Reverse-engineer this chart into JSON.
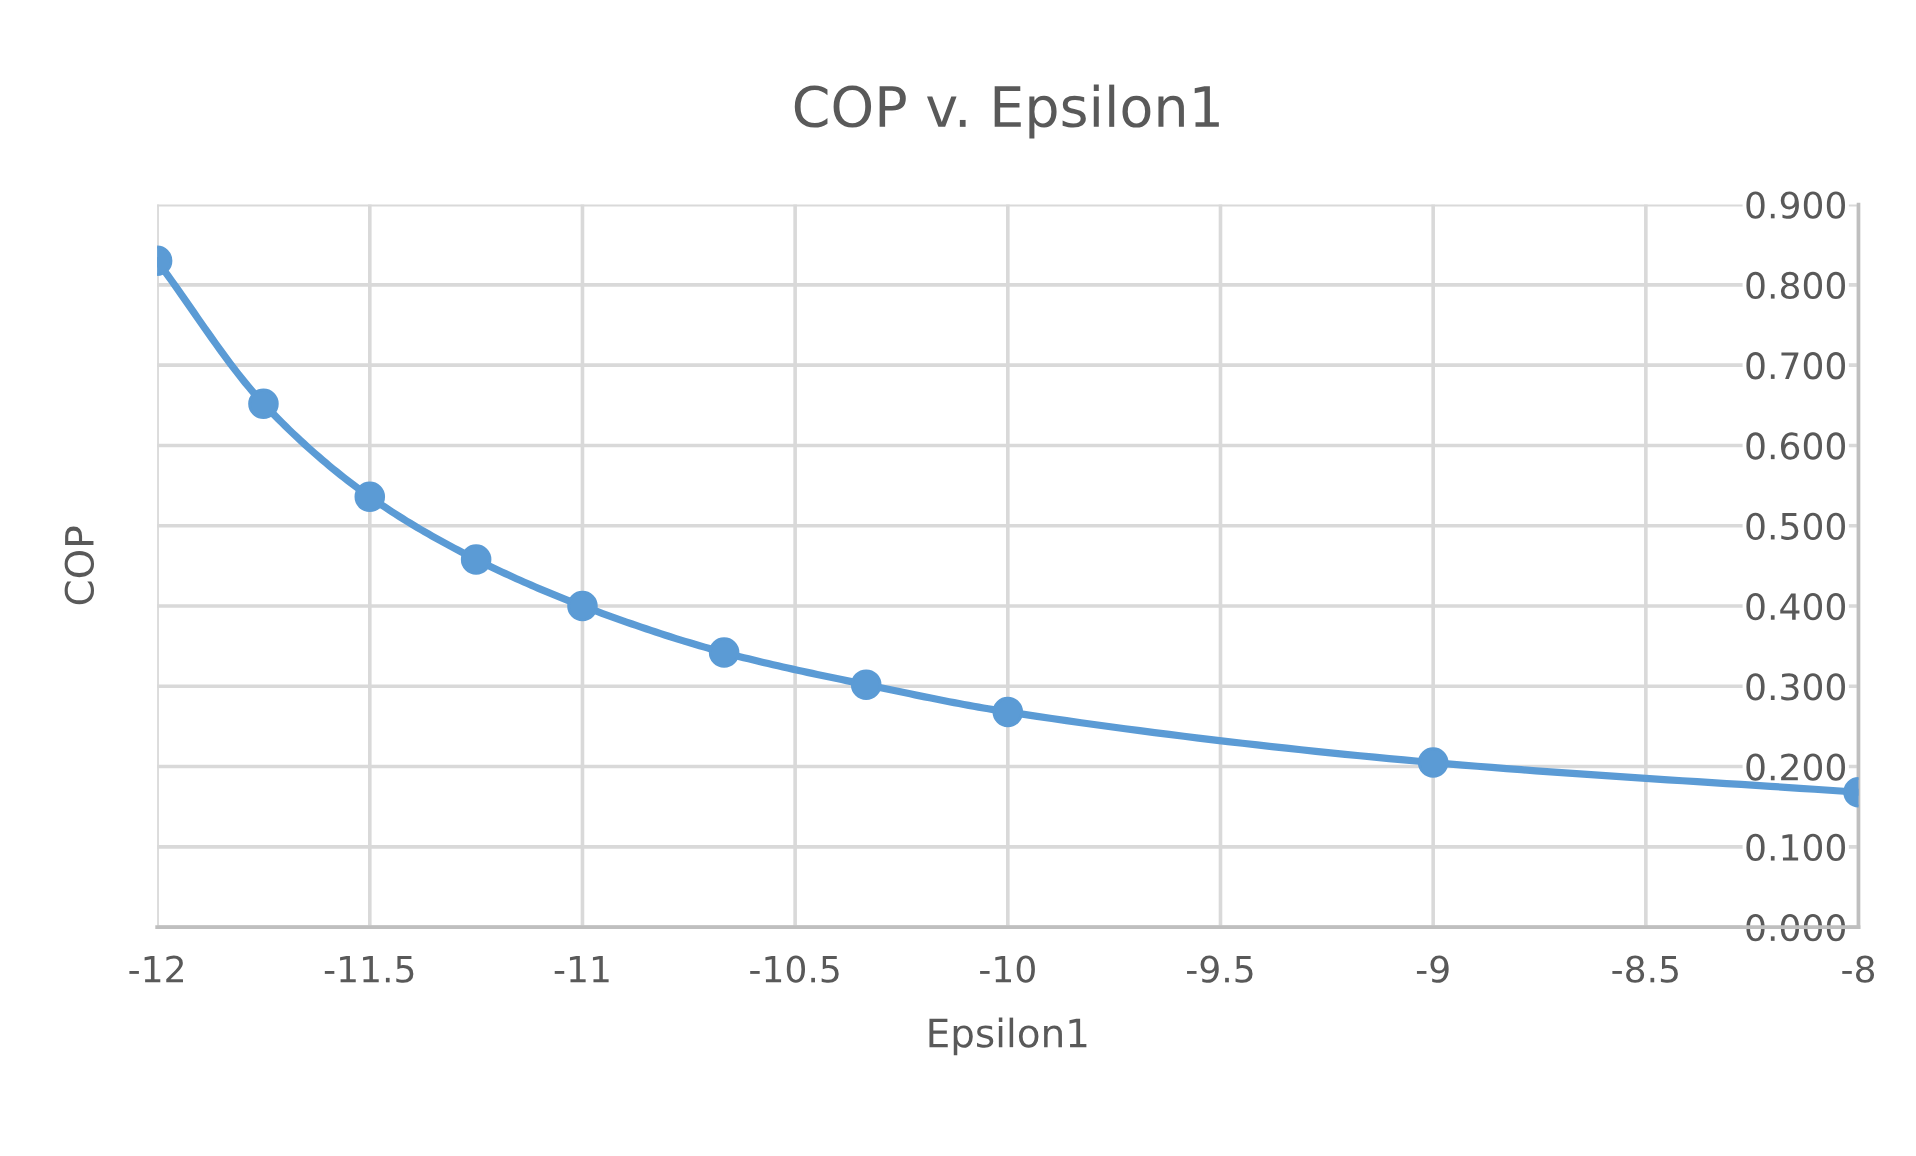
{
  "chart_data": {
    "type": "line",
    "title": "COP v. Epsilon1",
    "xlabel": "Epsilon1",
    "ylabel": "COP",
    "x": [
      -12,
      -11.75,
      -11.5,
      -11.25,
      -11,
      -10.667,
      -10.333,
      -10,
      -9,
      -8
    ],
    "series": [
      {
        "color": "#5b9bd5",
        "values": [
          0.83,
          0.652,
          0.536,
          0.458,
          0.4,
          0.342,
          0.302,
          0.268,
          0.205,
          0.168
        ]
      }
    ],
    "xlim": [
      -12,
      -8
    ],
    "xticks": [
      -12,
      -11.5,
      -11,
      -10.5,
      -10,
      -9.5,
      -9,
      -8.5,
      -8
    ],
    "ylim": [
      0,
      0.9
    ],
    "yticks": [
      {
        "value": 0,
        "label": "0.000"
      },
      {
        "value": 0.1,
        "label": "0.100"
      },
      {
        "value": 0.2,
        "label": "0.200"
      },
      {
        "value": 0.3,
        "label": "0.300"
      },
      {
        "value": 0.4,
        "label": "0.400"
      },
      {
        "value": 0.5,
        "label": "0.500"
      },
      {
        "value": 0.6,
        "label": "0.600"
      },
      {
        "value": 0.7,
        "label": "0.700"
      },
      {
        "value": 0.8,
        "label": "0.800"
      },
      {
        "value": 0.9,
        "label": "0.900"
      }
    ],
    "grid": true,
    "marker": "circle",
    "line_style": "solid",
    "legend": false
  }
}
